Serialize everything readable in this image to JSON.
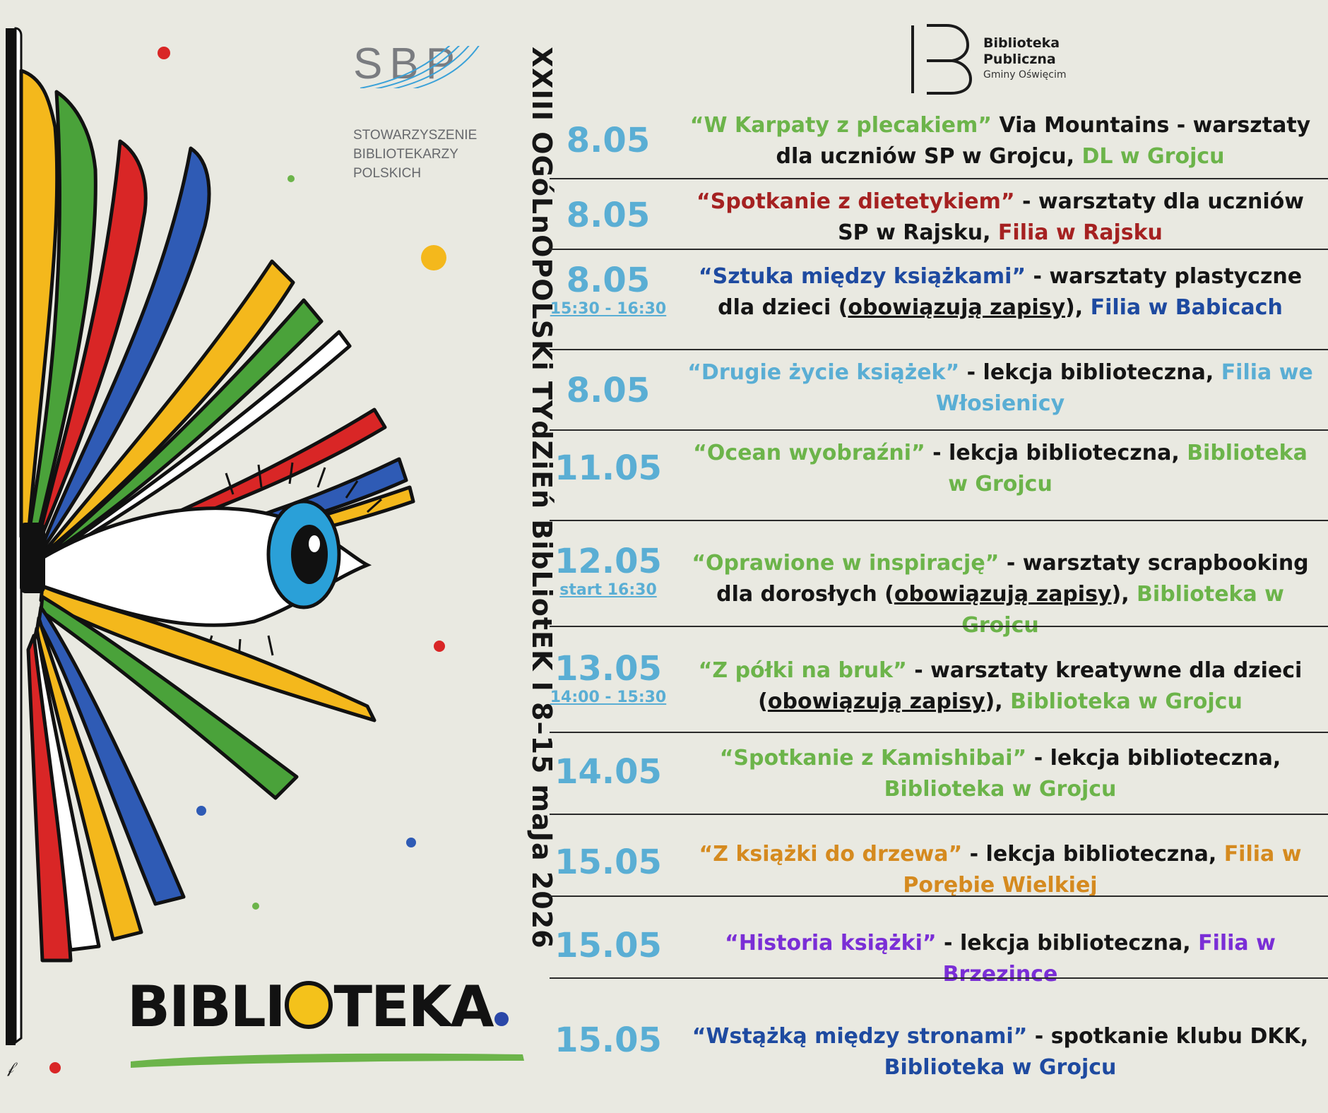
{
  "sbp": {
    "letters": "SBP",
    "name_line1": "STOWARZYSZENIE",
    "name_line2": "BIBLIOTEKARZY",
    "name_line3": "POLSKICH"
  },
  "vertical_title": "XXIII OGóLnOPOLSKi TYdZiEń BibLiotEK  I  8–15 maJa 2026",
  "publisher": {
    "line1": "Biblioteka",
    "line2": "Publiczna",
    "line3": "Gminy Oświęcim"
  },
  "poster_word": {
    "before": "BIBLI",
    "after": "TEKA"
  },
  "events": [
    {
      "date": "8.05",
      "time": "",
      "parts": [
        {
          "text": "“W Karpaty z plecakiem”",
          "color": "green"
        },
        {
          "text": " Via Mountains - warsztaty dla uczniów SP w Grojcu, ",
          "color": "dark"
        },
        {
          "text": "DL w Grojcu",
          "color": "green"
        }
      ]
    },
    {
      "date": "8.05",
      "time": "",
      "parts": [
        {
          "text": "“Spotkanie z dietetykiem”",
          "color": "red"
        },
        {
          "text": " - warsztaty dla uczniów SP w Rajsku, ",
          "color": "dark"
        },
        {
          "text": "Filia w Rajsku",
          "color": "red"
        }
      ]
    },
    {
      "date": "8.05",
      "time": "15:30 - 16:30",
      "parts": [
        {
          "text": "“Sztuka między książkami”",
          "color": "navy"
        },
        {
          "text": " - warsztaty plastyczne dla dzieci (",
          "color": "dark"
        },
        {
          "text": "obowiązują zapisy",
          "color": "dark",
          "underline": true
        },
        {
          "text": "), ",
          "color": "dark"
        },
        {
          "text": "Filia w Babicach",
          "color": "navy"
        }
      ]
    },
    {
      "date": "8.05",
      "time": "",
      "parts": [
        {
          "text": "“Drugie życie książek”",
          "color": "lblue"
        },
        {
          "text": " - lekcja biblioteczna, ",
          "color": "dark"
        },
        {
          "text": "Filia we Włosienicy",
          "color": "lblue"
        }
      ]
    },
    {
      "date": "11.05",
      "time": "",
      "parts": [
        {
          "text": "“Ocean wyobraźni”",
          "color": "green"
        },
        {
          "text": " - lekcja biblioteczna, ",
          "color": "dark"
        },
        {
          "text": "Biblioteka w Grojcu",
          "color": "green"
        }
      ]
    },
    {
      "date": "12.05",
      "time": "start 16:30",
      "parts": [
        {
          "text": "“Oprawione w inspirację”",
          "color": "green"
        },
        {
          "text": " - warsztaty scrapbooking dla dorosłych (",
          "color": "dark"
        },
        {
          "text": "obowiązują zapisy",
          "color": "dark",
          "underline": true
        },
        {
          "text": "), ",
          "color": "dark"
        },
        {
          "text": "Biblioteka w Grojcu",
          "color": "green"
        }
      ]
    },
    {
      "date": "13.05",
      "time": "14:00 - 15:30",
      "parts": [
        {
          "text": "“Z półki na bruk”",
          "color": "green"
        },
        {
          "text": " - warsztaty kreatywne dla dzieci (",
          "color": "dark"
        },
        {
          "text": "obowiązują zapisy",
          "color": "dark",
          "underline": true
        },
        {
          "text": "), ",
          "color": "dark"
        },
        {
          "text": "Biblioteka w Grojcu",
          "color": "green"
        }
      ]
    },
    {
      "date": "14.05",
      "time": "",
      "parts": [
        {
          "text": "“Spotkanie z Kamishibai”",
          "color": "green"
        },
        {
          "text": " - lekcja biblioteczna, ",
          "color": "dark"
        },
        {
          "text": "Biblioteka w Grojcu",
          "color": "green"
        }
      ]
    },
    {
      "date": "15.05",
      "time": "",
      "parts": [
        {
          "text": "“Z książki do drzewa”",
          "color": "orange"
        },
        {
          "text": " - lekcja biblioteczna, ",
          "color": "dark"
        },
        {
          "text": "Filia w Porębie Wielkiej",
          "color": "orange"
        }
      ]
    },
    {
      "date": "15.05",
      "time": "",
      "parts": [
        {
          "text": "“Historia książki”",
          "color": "purple"
        },
        {
          "text": " - lekcja biblioteczna, ",
          "color": "dark"
        },
        {
          "text": "Filia w Brzezince",
          "color": "purple"
        }
      ]
    },
    {
      "date": "15.05",
      "time": "",
      "parts": [
        {
          "text": "“Wstążką między stronami”",
          "color": "navy"
        },
        {
          "text": " - spotkanie klubu DKK, ",
          "color": "dark"
        },
        {
          "text": "Biblioteka w Grojcu",
          "color": "navy"
        }
      ]
    }
  ],
  "colors": {
    "background": "#e9e9e1",
    "date_blue": "#5aaed4",
    "green": "#6cb44a",
    "red": "#a52121",
    "navy": "#1e4aa0",
    "light_blue": "#5aaed4",
    "orange": "#d58a1f",
    "purple": "#7a2ed6"
  }
}
